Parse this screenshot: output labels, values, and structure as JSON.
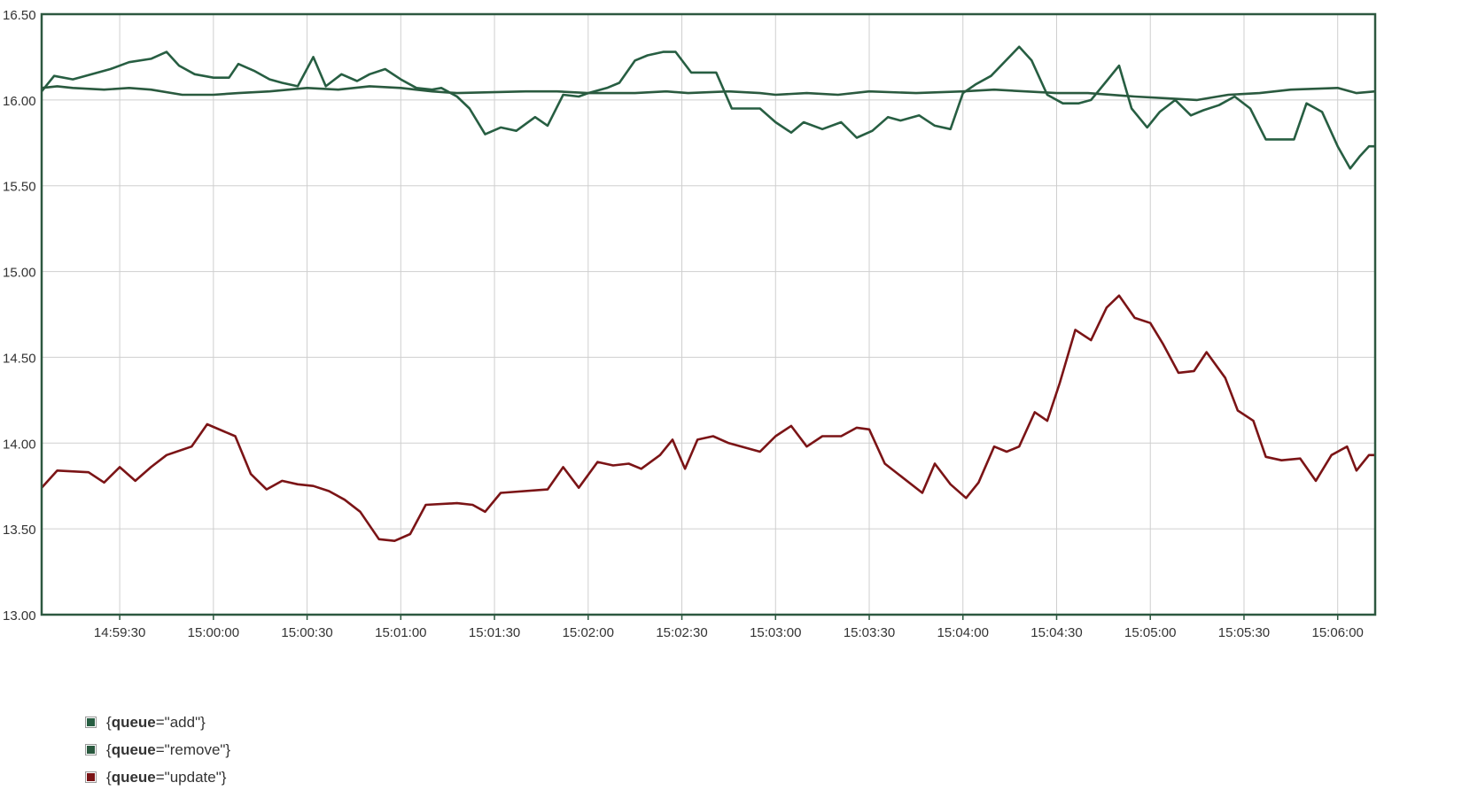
{
  "chart_data": {
    "type": "line",
    "x_format": "HH:MM:SS",
    "x_range": [
      "14:59:05",
      "15:06:12"
    ],
    "x_ticks": [
      "14:59:30",
      "15:00:00",
      "15:00:30",
      "15:01:00",
      "15:01:30",
      "15:02:00",
      "15:02:30",
      "15:03:00",
      "15:03:30",
      "15:04:00",
      "15:04:30",
      "15:05:00",
      "15:05:30",
      "15:06:00"
    ],
    "ylim": [
      13.0,
      16.5
    ],
    "y_ticks": [
      "13.00",
      "13.50",
      "14.00",
      "14.50",
      "15.00",
      "15.50",
      "16.00",
      "16.50"
    ],
    "grid": true,
    "legend_position": "bottom-left",
    "series": [
      {
        "name": "{queue=\"add\"}",
        "legend_key": "queue",
        "legend_value": "\"add\"",
        "color": "#275e42",
        "points": [
          [
            "14:59:05",
            16.05
          ],
          [
            "14:59:09",
            16.14
          ],
          [
            "14:59:15",
            16.12
          ],
          [
            "14:59:27",
            16.18
          ],
          [
            "14:59:33",
            16.22
          ],
          [
            "14:59:40",
            16.24
          ],
          [
            "14:59:45",
            16.28
          ],
          [
            "14:59:49",
            16.2
          ],
          [
            "14:59:54",
            16.15
          ],
          [
            "15:00:00",
            16.13
          ],
          [
            "15:00:05",
            16.13
          ],
          [
            "15:00:08",
            16.21
          ],
          [
            "15:00:13",
            16.17
          ],
          [
            "15:00:18",
            16.12
          ],
          [
            "15:00:22",
            16.1
          ],
          [
            "15:00:27",
            16.08
          ],
          [
            "15:00:32",
            16.25
          ],
          [
            "15:00:36",
            16.08
          ],
          [
            "15:00:41",
            16.15
          ],
          [
            "15:00:46",
            16.11
          ],
          [
            "15:00:50",
            16.15
          ],
          [
            "15:00:55",
            16.18
          ],
          [
            "15:01:00",
            16.12
          ],
          [
            "15:01:05",
            16.07
          ],
          [
            "15:01:10",
            16.06
          ],
          [
            "15:01:13",
            16.07
          ],
          [
            "15:01:18",
            16.02
          ],
          [
            "15:01:22",
            15.95
          ],
          [
            "15:01:27",
            15.8
          ],
          [
            "15:01:32",
            15.84
          ],
          [
            "15:01:37",
            15.82
          ],
          [
            "15:01:43",
            15.9
          ],
          [
            "15:01:47",
            15.85
          ],
          [
            "15:01:52",
            16.03
          ],
          [
            "15:01:57",
            16.02
          ],
          [
            "15:02:00",
            16.04
          ],
          [
            "15:02:06",
            16.07
          ],
          [
            "15:02:10",
            16.1
          ],
          [
            "15:02:15",
            16.23
          ],
          [
            "15:02:19",
            16.26
          ],
          [
            "15:02:24",
            16.28
          ],
          [
            "15:02:28",
            16.28
          ],
          [
            "15:02:33",
            16.16
          ],
          [
            "15:02:41",
            16.16
          ],
          [
            "15:02:46",
            15.95
          ],
          [
            "15:02:55",
            15.95
          ],
          [
            "15:03:00",
            15.87
          ],
          [
            "15:03:05",
            15.81
          ],
          [
            "15:03:09",
            15.87
          ],
          [
            "15:03:15",
            15.83
          ],
          [
            "15:03:21",
            15.87
          ],
          [
            "15:03:26",
            15.78
          ],
          [
            "15:03:31",
            15.82
          ],
          [
            "15:03:36",
            15.9
          ],
          [
            "15:03:40",
            15.88
          ],
          [
            "15:03:46",
            15.91
          ],
          [
            "15:03:51",
            15.85
          ],
          [
            "15:03:56",
            15.83
          ],
          [
            "15:04:00",
            16.04
          ],
          [
            "15:04:04",
            16.09
          ],
          [
            "15:04:09",
            16.14
          ],
          [
            "15:04:18",
            16.31
          ],
          [
            "15:04:22",
            16.23
          ],
          [
            "15:04:27",
            16.03
          ],
          [
            "15:04:32",
            15.98
          ],
          [
            "15:04:37",
            15.98
          ],
          [
            "15:04:41",
            16.0
          ],
          [
            "15:04:46",
            16.11
          ],
          [
            "15:04:50",
            16.2
          ],
          [
            "15:04:54",
            15.95
          ],
          [
            "15:04:59",
            15.84
          ],
          [
            "15:05:03",
            15.93
          ],
          [
            "15:05:08",
            16.0
          ],
          [
            "15:05:13",
            15.91
          ],
          [
            "15:05:17",
            15.94
          ],
          [
            "15:05:22",
            15.97
          ],
          [
            "15:05:27",
            16.02
          ],
          [
            "15:05:32",
            15.95
          ],
          [
            "15:05:37",
            15.77
          ],
          [
            "15:05:46",
            15.77
          ],
          [
            "15:05:50",
            15.98
          ],
          [
            "15:05:55",
            15.93
          ],
          [
            "15:06:00",
            15.73
          ],
          [
            "15:06:04",
            15.6
          ],
          [
            "15:06:07",
            15.67
          ],
          [
            "15:06:10",
            15.73
          ],
          [
            "15:06:12",
            15.73
          ]
        ]
      },
      {
        "name": "{queue=\"remove\"}",
        "legend_key": "queue",
        "legend_value": "\"remove\"",
        "color": "#2a5a3f",
        "points": [
          [
            "14:59:05",
            16.07
          ],
          [
            "14:59:10",
            16.08
          ],
          [
            "14:59:15",
            16.07
          ],
          [
            "14:59:25",
            16.06
          ],
          [
            "14:59:33",
            16.07
          ],
          [
            "14:59:40",
            16.06
          ],
          [
            "14:59:50",
            16.03
          ],
          [
            "15:00:00",
            16.03
          ],
          [
            "15:00:08",
            16.04
          ],
          [
            "15:00:18",
            16.05
          ],
          [
            "15:00:30",
            16.07
          ],
          [
            "15:00:40",
            16.06
          ],
          [
            "15:00:50",
            16.08
          ],
          [
            "15:01:00",
            16.07
          ],
          [
            "15:01:10",
            16.05
          ],
          [
            "15:01:18",
            16.04
          ],
          [
            "15:01:40",
            16.05
          ],
          [
            "15:01:50",
            16.05
          ],
          [
            "15:02:00",
            16.04
          ],
          [
            "15:02:15",
            16.04
          ],
          [
            "15:02:25",
            16.05
          ],
          [
            "15:02:32",
            16.04
          ],
          [
            "15:02:45",
            16.05
          ],
          [
            "15:02:55",
            16.04
          ],
          [
            "15:03:00",
            16.03
          ],
          [
            "15:03:10",
            16.04
          ],
          [
            "15:03:20",
            16.03
          ],
          [
            "15:03:30",
            16.05
          ],
          [
            "15:03:45",
            16.04
          ],
          [
            "15:04:00",
            16.05
          ],
          [
            "15:04:10",
            16.06
          ],
          [
            "15:04:20",
            16.05
          ],
          [
            "15:04:30",
            16.04
          ],
          [
            "15:04:40",
            16.04
          ],
          [
            "15:04:55",
            16.02
          ],
          [
            "15:05:05",
            16.01
          ],
          [
            "15:05:15",
            16.0
          ],
          [
            "15:05:25",
            16.03
          ],
          [
            "15:05:35",
            16.04
          ],
          [
            "15:05:45",
            16.06
          ],
          [
            "15:06:00",
            16.07
          ],
          [
            "15:06:06",
            16.04
          ],
          [
            "15:06:12",
            16.05
          ]
        ]
      },
      {
        "name": "{queue=\"update\"}",
        "legend_key": "queue",
        "legend_value": "\"update\"",
        "color": "#7b1416",
        "points": [
          [
            "14:59:05",
            13.74
          ],
          [
            "14:59:10",
            13.84
          ],
          [
            "14:59:20",
            13.83
          ],
          [
            "14:59:25",
            13.77
          ],
          [
            "14:59:30",
            13.86
          ],
          [
            "14:59:35",
            13.78
          ],
          [
            "14:59:40",
            13.86
          ],
          [
            "14:59:45",
            13.93
          ],
          [
            "14:59:53",
            13.98
          ],
          [
            "14:59:58",
            14.11
          ],
          [
            "15:00:07",
            14.04
          ],
          [
            "15:00:12",
            13.82
          ],
          [
            "15:00:17",
            13.73
          ],
          [
            "15:00:22",
            13.78
          ],
          [
            "15:00:27",
            13.76
          ],
          [
            "15:00:32",
            13.75
          ],
          [
            "15:00:37",
            13.72
          ],
          [
            "15:00:42",
            13.67
          ],
          [
            "15:00:47",
            13.6
          ],
          [
            "15:00:53",
            13.44
          ],
          [
            "15:00:58",
            13.43
          ],
          [
            "15:01:03",
            13.47
          ],
          [
            "15:01:08",
            13.64
          ],
          [
            "15:01:18",
            13.65
          ],
          [
            "15:01:23",
            13.64
          ],
          [
            "15:01:27",
            13.6
          ],
          [
            "15:01:32",
            13.71
          ],
          [
            "15:01:47",
            13.73
          ],
          [
            "15:01:52",
            13.86
          ],
          [
            "15:01:57",
            13.74
          ],
          [
            "15:02:03",
            13.89
          ],
          [
            "15:02:08",
            13.87
          ],
          [
            "15:02:13",
            13.88
          ],
          [
            "15:02:17",
            13.85
          ],
          [
            "15:02:23",
            13.93
          ],
          [
            "15:02:27",
            14.02
          ],
          [
            "15:02:31",
            13.85
          ],
          [
            "15:02:35",
            14.02
          ],
          [
            "15:02:40",
            14.04
          ],
          [
            "15:02:45",
            14.0
          ],
          [
            "15:02:55",
            13.95
          ],
          [
            "15:03:00",
            14.04
          ],
          [
            "15:03:05",
            14.1
          ],
          [
            "15:03:10",
            13.98
          ],
          [
            "15:03:15",
            14.04
          ],
          [
            "15:03:21",
            14.04
          ],
          [
            "15:03:26",
            14.09
          ],
          [
            "15:03:30",
            14.08
          ],
          [
            "15:03:35",
            13.88
          ],
          [
            "15:03:47",
            13.71
          ],
          [
            "15:03:51",
            13.88
          ],
          [
            "15:03:56",
            13.76
          ],
          [
            "15:04:01",
            13.68
          ],
          [
            "15:04:05",
            13.77
          ],
          [
            "15:04:10",
            13.98
          ],
          [
            "15:04:14",
            13.95
          ],
          [
            "15:04:18",
            13.98
          ],
          [
            "15:04:23",
            14.18
          ],
          [
            "15:04:27",
            14.13
          ],
          [
            "15:04:31",
            14.35
          ],
          [
            "15:04:36",
            14.66
          ],
          [
            "15:04:41",
            14.6
          ],
          [
            "15:04:46",
            14.79
          ],
          [
            "15:04:50",
            14.86
          ],
          [
            "15:04:55",
            14.73
          ],
          [
            "15:05:00",
            14.7
          ],
          [
            "15:05:04",
            14.58
          ],
          [
            "15:05:09",
            14.41
          ],
          [
            "15:05:14",
            14.42
          ],
          [
            "15:05:18",
            14.53
          ],
          [
            "15:05:24",
            14.38
          ],
          [
            "15:05:28",
            14.19
          ],
          [
            "15:05:33",
            14.13
          ],
          [
            "15:05:37",
            13.92
          ],
          [
            "15:05:42",
            13.9
          ],
          [
            "15:05:48",
            13.91
          ],
          [
            "15:05:53",
            13.78
          ],
          [
            "15:05:58",
            13.93
          ],
          [
            "15:06:03",
            13.98
          ],
          [
            "15:06:06",
            13.84
          ],
          [
            "15:06:10",
            13.93
          ],
          [
            "15:06:12",
            13.93
          ]
        ]
      }
    ]
  }
}
